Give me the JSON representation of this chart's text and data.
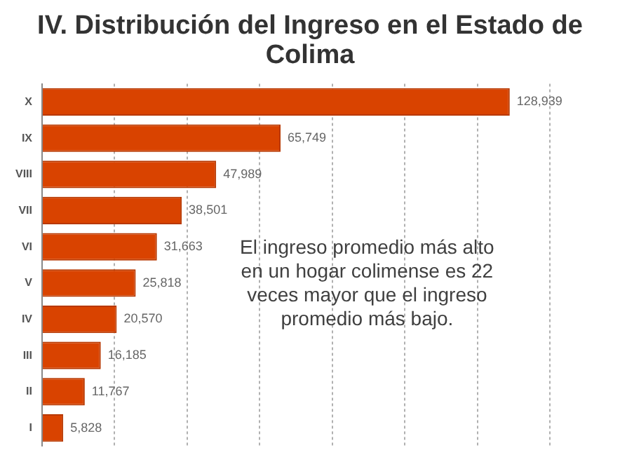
{
  "chart_data": {
    "type": "bar",
    "orientation": "horizontal",
    "title": "IV. Distribución del Ingreso en el Estado de Colima",
    "categories": [
      "X",
      "IX",
      "VIII",
      "VII",
      "VI",
      "V",
      "IV",
      "III",
      "II",
      "I"
    ],
    "values": [
      128939,
      65749,
      47989,
      38501,
      31663,
      25818,
      20570,
      16185,
      11767,
      5828
    ],
    "color": "#d94300",
    "value_labels": [
      "128,939",
      "65,749",
      "47,989",
      "38,501",
      "31,663",
      "25,818",
      "20,570",
      "16,185",
      "11,767",
      "5,828"
    ],
    "xlim": [
      0,
      140000
    ],
    "xticks": [
      {
        "value": 0,
        "label": null
      },
      {
        "value": 20000,
        "label": null
      },
      {
        "value": 40000,
        "label": null
      },
      {
        "value": 60000,
        "label": null
      },
      {
        "value": 80000,
        "label": null
      },
      {
        "value": 100000,
        "label": null
      },
      {
        "value": 120000,
        "label": null
      },
      {
        "value": 140000,
        "label": null
      }
    ],
    "grid": "x",
    "tick_labels": "y",
    "annotations": [
      "El ingreso promedio más alto en un hogar colimense es 22 veces mayor que el ingreso promedio más bajo."
    ]
  }
}
